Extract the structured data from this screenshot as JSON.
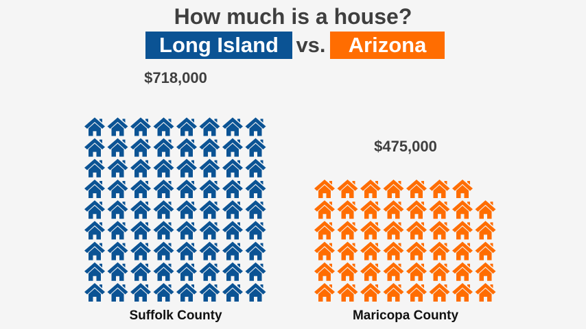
{
  "header": {
    "title": "How much is a house?",
    "vs_label": "vs.",
    "left_badge": "Long Island",
    "right_badge": "Arizona"
  },
  "colors": {
    "long_island": "#0b5394",
    "arizona": "#ff6d01",
    "background": "#f5f5f5"
  },
  "chart_data": {
    "type": "pictograph",
    "icon": "house-icon",
    "title": "How much is a house?",
    "categories": [
      "Suffolk County",
      "Maricopa County"
    ],
    "values": [
      718000,
      475000
    ],
    "value_labels": [
      "$718,000",
      "$475,000"
    ],
    "icons_per_row": 8,
    "series": [
      {
        "category": "Suffolk County",
        "region": "Long Island",
        "value": 718000,
        "value_label": "$718,000",
        "icons": 72,
        "color": "#0b5394"
      },
      {
        "category": "Maricopa County",
        "region": "Arizona",
        "value": 475000,
        "value_label": "$475,000",
        "icons": 47.5,
        "color": "#ff6d01"
      }
    ]
  }
}
